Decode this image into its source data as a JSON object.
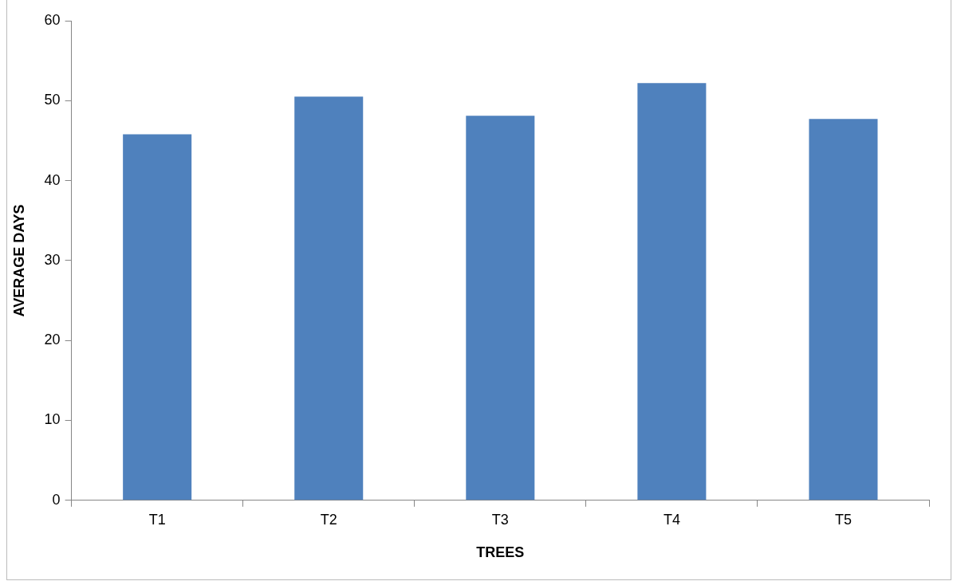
{
  "chart_data": {
    "type": "bar",
    "xlabel": "TREES",
    "ylabel": "AVERAGE DAYS",
    "categories": [
      "T1",
      "T2",
      "T3",
      "T4",
      "T5"
    ],
    "values": [
      45.8,
      50.5,
      48.1,
      52.2,
      47.7
    ],
    "color": "#4f81bd",
    "ylim": [
      0,
      60
    ],
    "yticks": [
      0,
      10,
      20,
      30,
      40,
      50,
      60
    ],
    "grid": false,
    "legend": false
  }
}
